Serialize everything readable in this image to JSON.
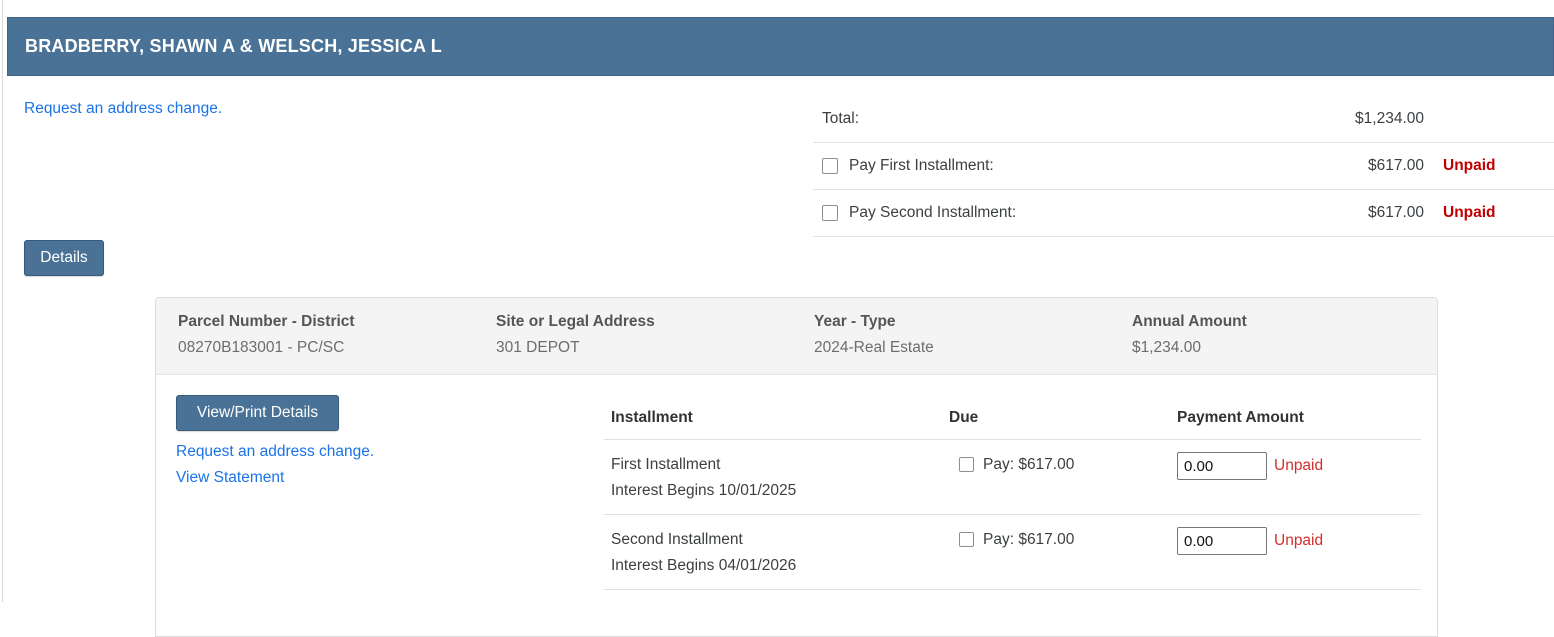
{
  "colors": {
    "accent_blue": "#4a7296",
    "link_blue": "#1a73e8",
    "unpaid_red": "#c00000",
    "row_unpaid_red": "#d32f2f"
  },
  "title_bar": {
    "owner_names": "BRADBERRY, SHAWN A & WELSCH, JESSICA L"
  },
  "top_links": {
    "address_change": "Request an address change."
  },
  "totals": {
    "total_label": "Total:",
    "total_amount": "$1,234.00",
    "rows": [
      {
        "label": "Pay First Installment:",
        "amount": "$617.00",
        "status": "Unpaid"
      },
      {
        "label": "Pay Second Installment:",
        "amount": "$617.00",
        "status": "Unpaid"
      }
    ]
  },
  "details_button_label": "Details",
  "parcel_summary": {
    "headers": [
      "Parcel Number - District",
      "Site or Legal Address",
      "Year - Type",
      "Annual Amount"
    ],
    "values": [
      "08270B183001 - PC/SC",
      "301 DEPOT",
      "2024-Real Estate",
      "$1,234.00"
    ]
  },
  "actions": {
    "view_print_label": "View/Print Details",
    "address_change": "Request an address change.",
    "view_statement": "View Statement"
  },
  "installments": {
    "headers": {
      "installment": "Installment",
      "due": "Due",
      "payment_amount": "Payment Amount"
    },
    "rows": [
      {
        "name": "First Installment",
        "note": "Interest Begins 10/01/2025",
        "due": "Pay: $617.00",
        "amount_value": "0.00",
        "status": "Unpaid"
      },
      {
        "name": "Second Installment",
        "note": "Interest Begins 04/01/2026",
        "due": "Pay: $617.00",
        "amount_value": "0.00",
        "status": "Unpaid"
      }
    ]
  }
}
